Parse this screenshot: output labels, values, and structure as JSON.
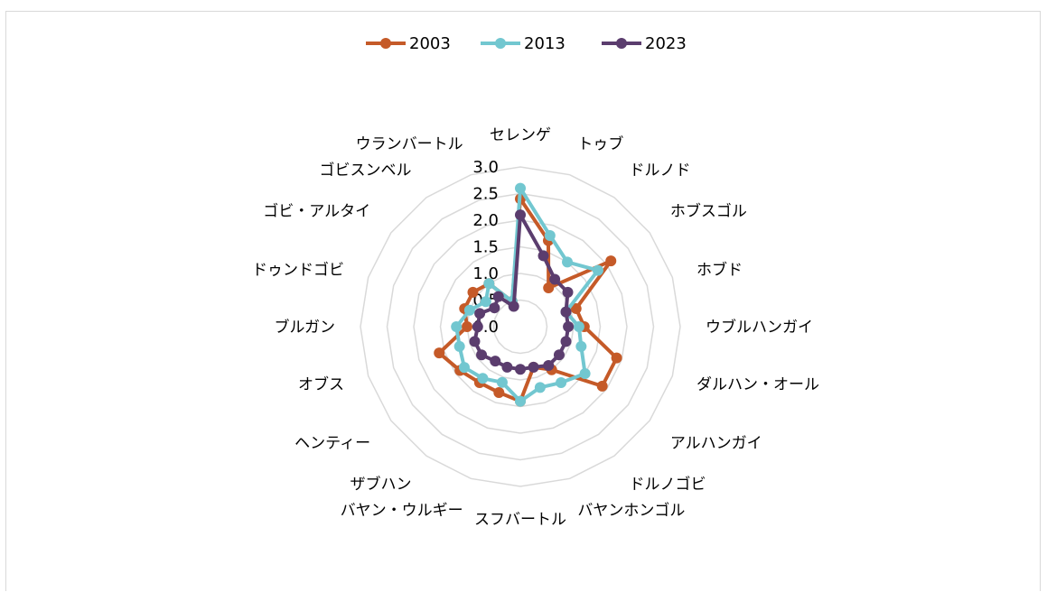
{
  "chart_data": {
    "type": "radar",
    "title": "",
    "categories": [
      "セレンゲ",
      "トゥブ",
      "ドルノド",
      "ホブスゴル",
      "ホブド",
      "ウブルハンガイ",
      "ダルハン・オール",
      "アルハンガイ",
      "ドルノゴビ",
      "バヤンホンゴル",
      "スフバートル",
      "バヤン・ウルギー",
      "ザブハン",
      "ヘンティー",
      "オブス",
      "ブルガン",
      "ドゥンドゴビ",
      "ゴビ・アルタイ",
      "ゴビスンベル",
      "ウランバートル"
    ],
    "rlim": [
      0,
      3.0
    ],
    "ticks": [
      "0.0",
      "0.5",
      "1.0",
      "1.5",
      "2.0",
      "2.5",
      "3.0"
    ],
    "grid": true,
    "legend_position": "top",
    "series": [
      {
        "name": "2003",
        "color": "#c55a28",
        "values": [
          2.4,
          1.7,
          0.9,
          2.1,
          1.1,
          1.2,
          1.9,
          1.9,
          1.0,
          0.8,
          1.4,
          1.3,
          1.3,
          1.4,
          1.6,
          1.0,
          1.1,
          1.1,
          1.0,
          0.5
        ]
      },
      {
        "name": "2013",
        "color": "#72c7d0",
        "values": [
          2.6,
          1.8,
          1.5,
          1.8,
          0.9,
          1.1,
          1.2,
          1.5,
          1.3,
          1.2,
          1.4,
          1.1,
          1.2,
          1.3,
          1.2,
          1.2,
          1.0,
          0.8,
          1.0,
          0.5
        ]
      },
      {
        "name": "2023",
        "color": "#5b3d6e",
        "values": [
          2.1,
          1.4,
          1.1,
          1.1,
          0.9,
          0.9,
          0.9,
          0.9,
          0.9,
          0.8,
          0.8,
          0.8,
          0.8,
          0.9,
          0.9,
          0.8,
          0.8,
          0.6,
          0.7,
          0.4
        ]
      }
    ]
  }
}
